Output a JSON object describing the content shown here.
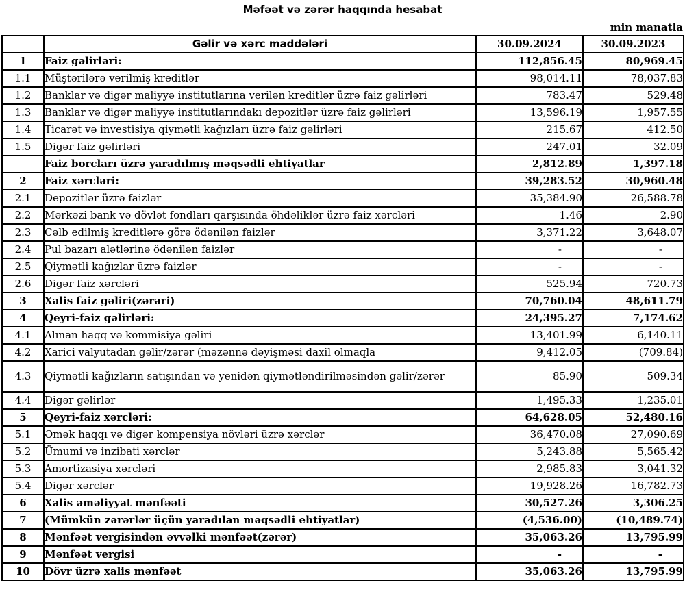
{
  "title": "Məfəət və zərər haqqında hesabat",
  "unit_note": "min manatla",
  "table": {
    "headers": {
      "item": "Gəlir və xərc maddələri",
      "col2024": "30.09.2024",
      "col2023": "30.09.2023"
    },
    "rows": [
      {
        "num": "1",
        "label": "Faiz gəlirləri:",
        "v2024": "112,856.45",
        "v2023": "80,969.45",
        "bold": true
      },
      {
        "num": "1.1",
        "label": "Müştərilərə verilmiş kreditlər",
        "v2024": "98,014.11",
        "v2023": "78,037.83"
      },
      {
        "num": "1.2",
        "label": "Banklar və digər maliyyə institutlarına verilən kreditlər üzrə faiz gəlirləri",
        "v2024": "783.47",
        "v2023": "529.48"
      },
      {
        "num": "1.3",
        "label": "Banklar və digər maliyyə institutlarındakı depozitlər üzrə faiz gəlirləri",
        "v2024": "13,596.19",
        "v2023": "1,957.55"
      },
      {
        "num": "1.4",
        "label": "Ticarət və investisiya qiymətli kağızları üzrə faiz gəlirləri",
        "v2024": "215.67",
        "v2023": "412.50"
      },
      {
        "num": "1.5",
        "label": "Digər faiz gəlirləri",
        "v2024": "247.01",
        "v2023": "32.09"
      },
      {
        "num": "",
        "label": "Faiz borcları üzrə yaradılmış məqsədli ehtiyatlar",
        "v2024": "2,812.89",
        "v2023": "1,397.18",
        "bold": true
      },
      {
        "num": "2",
        "label": "Faiz xərcləri:",
        "v2024": "39,283.52",
        "v2023": "30,960.48",
        "bold": true
      },
      {
        "num": "2.1",
        "label": "Depozitlər üzrə faizlər",
        "v2024": "35,384.90",
        "v2023": "26,588.78"
      },
      {
        "num": "2.2",
        "label": "Mərkəzi bank və dövlət fondları qarşısında öhdəliklər üzrə faiz xərcləri",
        "v2024": "1.46",
        "v2023": "2.90"
      },
      {
        "num": "2.3",
        "label": "Cəlb edilmiş kreditlərə görə ödənilən faizlər",
        "v2024": "3,371.22",
        "v2023": "3,648.07"
      },
      {
        "num": "2.4",
        "label": "Pul bazarı alətlərinə ödənilən faizlər",
        "v2024": "-",
        "v2023": "-"
      },
      {
        "num": "2.5",
        "label": "Qiymətli kağızlar üzrə faizlər",
        "v2024": "-",
        "v2023": "-"
      },
      {
        "num": "2.6",
        "label": "Digər faiz xərcləri",
        "v2024": "525.94",
        "v2023": "720.73"
      },
      {
        "num": "3",
        "label": "Xalis faiz gəliri(zərəri)",
        "v2024": "70,760.04",
        "v2023": "48,611.79",
        "bold": true
      },
      {
        "num": "4",
        "label": "Qeyri-faiz gəlirləri:",
        "v2024": "24,395.27",
        "v2023": "7,174.62",
        "bold": true
      },
      {
        "num": "4.1",
        "label": "Alınan haqq və kommisiya gəliri",
        "v2024": "13,401.99",
        "v2023": "6,140.11"
      },
      {
        "num": "4.2",
        "label": "Xarici valyutadan gəlir/zərər (məzənnə dəyişməsi daxil olmaqla",
        "v2024": "9,412.05",
        "v2023": "(709.84)"
      },
      {
        "num": "4.3",
        "label": "Qiymətli kağızların satışından və yenidən qiymətləndirilməsindən gəlir/zərər",
        "v2024": "85.90",
        "v2023": "509.34",
        "tall": true
      },
      {
        "num": "4.4",
        "label": "Digər gəlirlər",
        "v2024": "1,495.33",
        "v2023": "1,235.01"
      },
      {
        "num": "5",
        "label": "Qeyri-faiz xərcləri:",
        "v2024": "64,628.05",
        "v2023": "52,480.16",
        "bold": true
      },
      {
        "num": "5.1",
        "label": "Əmək haqqı və digər kompensiya növləri üzrə xərclər",
        "v2024": "36,470.08",
        "v2023": "27,090.69"
      },
      {
        "num": "5.2",
        "label": "Ümumi və inzibati xərclər",
        "v2024": "5,243.88",
        "v2023": "5,565.42"
      },
      {
        "num": "5.3",
        "label": "Amortizasiya xərcləri",
        "v2024": "2,985.83",
        "v2023": "3,041.32"
      },
      {
        "num": "5.4",
        "label": "Digər xərclər",
        "v2024": "19,928.26",
        "v2023": "16,782.73"
      },
      {
        "num": "6",
        "label": "Xalis əməliyyat mənfəəti",
        "v2024": "30,527.26",
        "v2023": "3,306.25",
        "bold": true
      },
      {
        "num": "7",
        "label": "(Mümkün zərərlər üçün yaradılan məqsədli ehtiyatlar)",
        "v2024": "(4,536.00)",
        "v2023": "(10,489.74)",
        "bold": true
      },
      {
        "num": "8",
        "label": "Mənfəət vergisindən əvvəlki mənfəət(zərər)",
        "v2024": "35,063.26",
        "v2023": "13,795.99",
        "bold": true
      },
      {
        "num": "9",
        "label": "Mənfəət vergisi",
        "v2024": "-",
        "v2023": "-",
        "bold": true
      },
      {
        "num": "10",
        "label": "Dövr üzrə xalis mənfəət",
        "v2024": "35,063.26",
        "v2023": "13,795.99",
        "bold": true
      }
    ]
  }
}
